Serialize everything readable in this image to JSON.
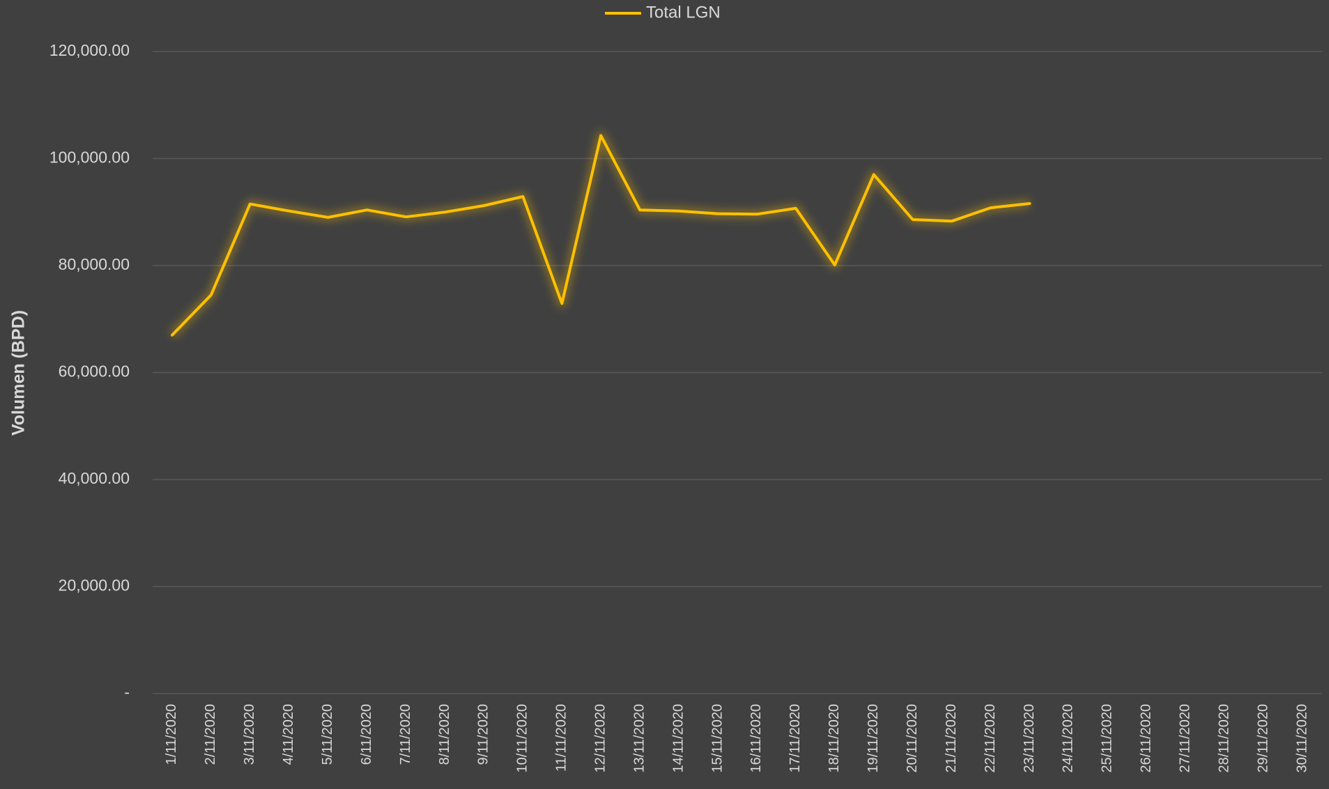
{
  "chart_data": {
    "type": "line",
    "y_axis_label": "Volumen (BPD)",
    "categories": [
      "1/11/2020",
      "2/11/2020",
      "3/11/2020",
      "4/11/2020",
      "5/11/2020",
      "6/11/2020",
      "7/11/2020",
      "8/11/2020",
      "9/11/2020",
      "10/11/2020",
      "11/11/2020",
      "12/11/2020",
      "13/11/2020",
      "14/11/2020",
      "15/11/2020",
      "16/11/2020",
      "17/11/2020",
      "18/11/2020",
      "19/11/2020",
      "20/11/2020",
      "21/11/2020",
      "22/11/2020",
      "23/11/2020",
      "24/11/2020",
      "25/11/2020",
      "26/11/2020",
      "27/11/2020",
      "28/11/2020",
      "29/11/2020",
      "30/11/2020"
    ],
    "series": [
      {
        "name": "Total LGN",
        "color": "#ffc000",
        "values": [
          67000,
          74500,
          91500,
          90200,
          89000,
          90400,
          89100,
          90000,
          91200,
          92900,
          72900,
          104300,
          90400,
          90200,
          89700,
          89600,
          90700,
          80100,
          97000,
          88600,
          88300,
          90800,
          91600,
          null,
          null,
          null,
          null,
          null,
          null,
          null
        ]
      }
    ],
    "ylim": [
      0,
      120000
    ],
    "yticks": [
      {
        "value": 0,
        "label": "-"
      },
      {
        "value": 20000,
        "label": "20,000.00"
      },
      {
        "value": 40000,
        "label": "40,000.00"
      },
      {
        "value": 60000,
        "label": "60,000.00"
      },
      {
        "value": 80000,
        "label": "80,000.00"
      },
      {
        "value": 100000,
        "label": "100,000.00"
      },
      {
        "value": 120000,
        "label": "120,000.00"
      }
    ],
    "grid": true,
    "legend": "top"
  }
}
